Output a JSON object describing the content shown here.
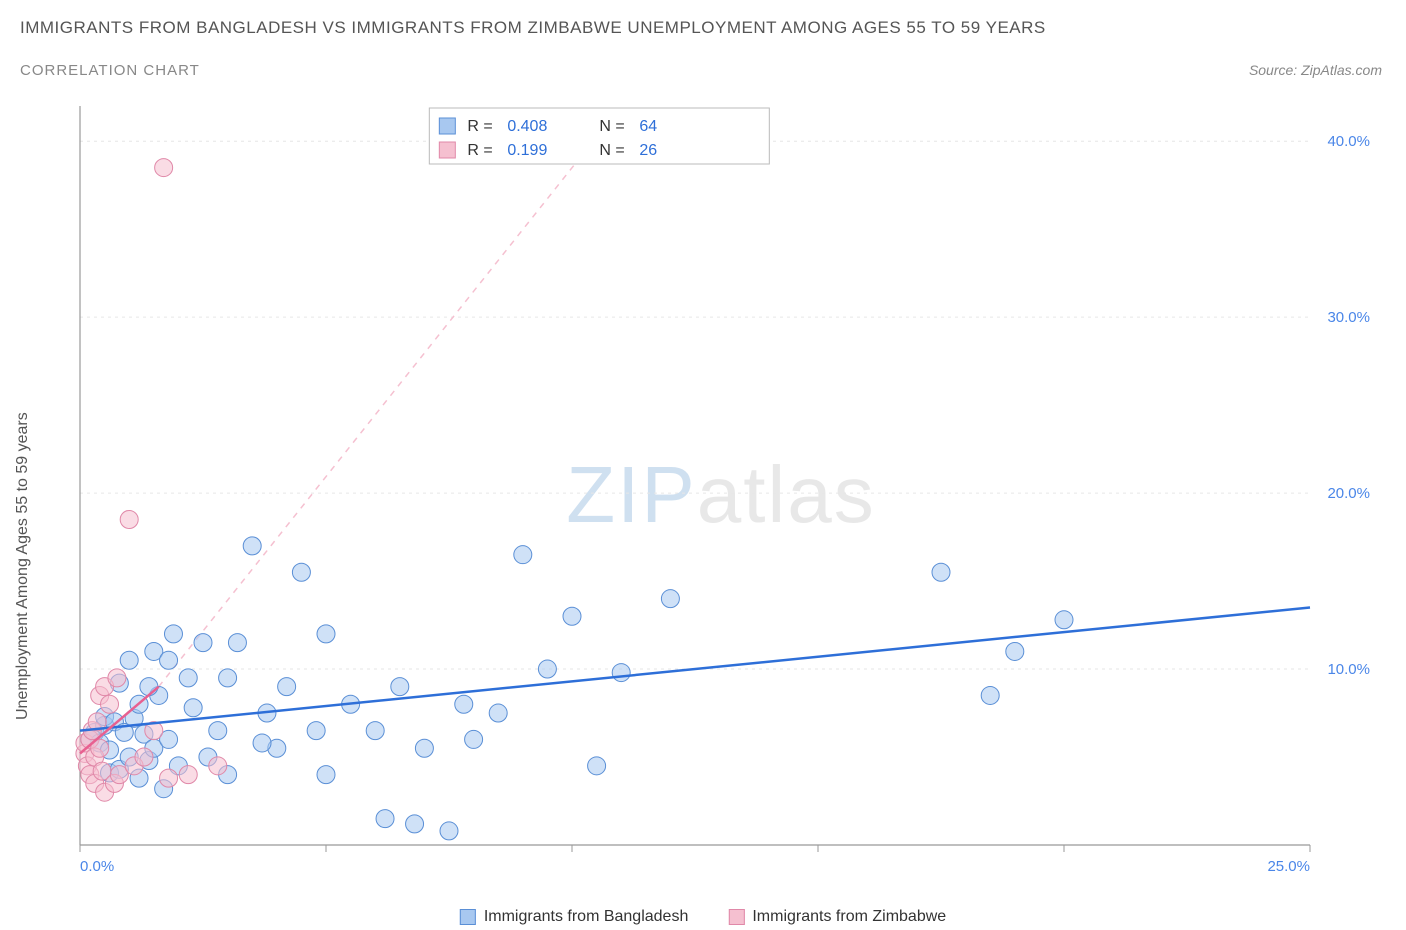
{
  "title": "IMMIGRANTS FROM BANGLADESH VS IMMIGRANTS FROM ZIMBABWE UNEMPLOYMENT AMONG AGES 55 TO 59 YEARS",
  "subtitle": "CORRELATION CHART",
  "source": "Source: ZipAtlas.com",
  "y_axis_label": "Unemployment Among Ages 55 to 59 years",
  "watermark_a": "ZIP",
  "watermark_b": "atlas",
  "chart": {
    "type": "scatter",
    "background_color": "#ffffff",
    "grid_color": "#e6e6e6",
    "axis_color": "#999999",
    "xlim": [
      0,
      25
    ],
    "ylim": [
      0,
      42
    ],
    "x_ticks": [
      0,
      5,
      10,
      15,
      20,
      25
    ],
    "x_tick_labels": [
      "0.0%",
      "",
      "",
      "",
      "",
      "25.0%"
    ],
    "y_ticks": [
      10,
      20,
      30,
      40
    ],
    "y_tick_labels": [
      "10.0%",
      "20.0%",
      "30.0%",
      "40.0%"
    ],
    "y_label_color": "#4a86e8",
    "marker_radius": 9,
    "marker_opacity": 0.55,
    "series": [
      {
        "name": "Immigrants from Bangladesh",
        "color_fill": "#a8c8f0",
        "color_stroke": "#5a8fd6",
        "R": "0.408",
        "N": "64",
        "trend": {
          "x1": 0,
          "y1": 6.5,
          "x2": 25,
          "y2": 13.5,
          "stroke": "#2e6fd8",
          "width": 2.5,
          "dash": "none"
        },
        "trend_ext": {
          "x1": 22.5,
          "y1": 12.8,
          "x2": 25,
          "y2": 13.5,
          "stroke": "#a8c8f0",
          "width": 1.5,
          "dash": "5,5"
        },
        "points": [
          [
            0.2,
            6.0
          ],
          [
            0.3,
            6.4
          ],
          [
            0.4,
            5.8
          ],
          [
            0.5,
            6.8
          ],
          [
            0.5,
            7.3
          ],
          [
            0.6,
            4.1
          ],
          [
            0.6,
            5.4
          ],
          [
            0.7,
            7.0
          ],
          [
            0.8,
            9.2
          ],
          [
            0.8,
            4.3
          ],
          [
            0.9,
            6.4
          ],
          [
            1.0,
            10.5
          ],
          [
            1.0,
            5.0
          ],
          [
            1.1,
            7.2
          ],
          [
            1.2,
            3.8
          ],
          [
            1.2,
            8.0
          ],
          [
            1.3,
            6.3
          ],
          [
            1.4,
            4.8
          ],
          [
            1.5,
            11.0
          ],
          [
            1.5,
            5.5
          ],
          [
            1.6,
            8.5
          ],
          [
            1.7,
            3.2
          ],
          [
            1.8,
            10.5
          ],
          [
            1.8,
            6.0
          ],
          [
            1.9,
            12.0
          ],
          [
            2.0,
            4.5
          ],
          [
            2.2,
            9.5
          ],
          [
            2.5,
            11.5
          ],
          [
            2.6,
            5.0
          ],
          [
            2.8,
            6.5
          ],
          [
            3.0,
            9.5
          ],
          [
            3.0,
            4.0
          ],
          [
            3.2,
            11.5
          ],
          [
            3.5,
            17.0
          ],
          [
            3.8,
            7.5
          ],
          [
            4.0,
            5.5
          ],
          [
            4.2,
            9.0
          ],
          [
            4.5,
            15.5
          ],
          [
            4.8,
            6.5
          ],
          [
            5.0,
            12.0
          ],
          [
            5.0,
            4.0
          ],
          [
            5.5,
            8.0
          ],
          [
            6.0,
            6.5
          ],
          [
            6.2,
            1.5
          ],
          [
            6.5,
            9.0
          ],
          [
            7.0,
            5.5
          ],
          [
            7.5,
            0.8
          ],
          [
            7.8,
            8.0
          ],
          [
            8.0,
            6.0
          ],
          [
            8.5,
            7.5
          ],
          [
            9.0,
            16.5
          ],
          [
            9.5,
            10.0
          ],
          [
            10.0,
            13.0
          ],
          [
            10.5,
            4.5
          ],
          [
            11.0,
            9.8
          ],
          [
            12.0,
            14.0
          ],
          [
            17.5,
            15.5
          ],
          [
            18.5,
            8.5
          ],
          [
            19.0,
            11.0
          ],
          [
            20.0,
            12.8
          ],
          [
            2.3,
            7.8
          ],
          [
            3.7,
            5.8
          ],
          [
            6.8,
            1.2
          ],
          [
            1.4,
            9.0
          ]
        ]
      },
      {
        "name": "Immigrants from Zimbabwe",
        "color_fill": "#f5c0d0",
        "color_stroke": "#e088a8",
        "R": "0.199",
        "N": "26",
        "trend": {
          "x1": 0,
          "y1": 5.2,
          "x2": 1.6,
          "y2": 9.0,
          "stroke": "#e86090",
          "width": 2.5,
          "dash": "none"
        },
        "trend_ext": {
          "x1": 1.6,
          "y1": 9.0,
          "x2": 11.0,
          "y2": 42.0,
          "stroke": "#f5c0d0",
          "width": 1.5,
          "dash": "6,6"
        },
        "points": [
          [
            0.1,
            5.2
          ],
          [
            0.1,
            5.8
          ],
          [
            0.15,
            4.5
          ],
          [
            0.2,
            6.0
          ],
          [
            0.2,
            4.0
          ],
          [
            0.25,
            6.5
          ],
          [
            0.3,
            5.0
          ],
          [
            0.3,
            3.5
          ],
          [
            0.35,
            7.0
          ],
          [
            0.4,
            5.5
          ],
          [
            0.4,
            8.5
          ],
          [
            0.45,
            4.2
          ],
          [
            0.5,
            9.0
          ],
          [
            0.5,
            3.0
          ],
          [
            0.6,
            8.0
          ],
          [
            0.7,
            3.5
          ],
          [
            0.75,
            9.5
          ],
          [
            0.8,
            4.0
          ],
          [
            1.0,
            18.5
          ],
          [
            1.1,
            4.5
          ],
          [
            1.3,
            5.0
          ],
          [
            1.5,
            6.5
          ],
          [
            1.8,
            3.8
          ],
          [
            2.2,
            4.0
          ],
          [
            2.8,
            4.5
          ],
          [
            1.7,
            38.5
          ]
        ]
      }
    ]
  },
  "legend_bottom": [
    {
      "label": "Immigrants from Bangladesh",
      "fill": "#a8c8f0",
      "stroke": "#5a8fd6"
    },
    {
      "label": "Immigrants from Zimbabwe",
      "fill": "#f5c0d0",
      "stroke": "#e088a8"
    }
  ]
}
